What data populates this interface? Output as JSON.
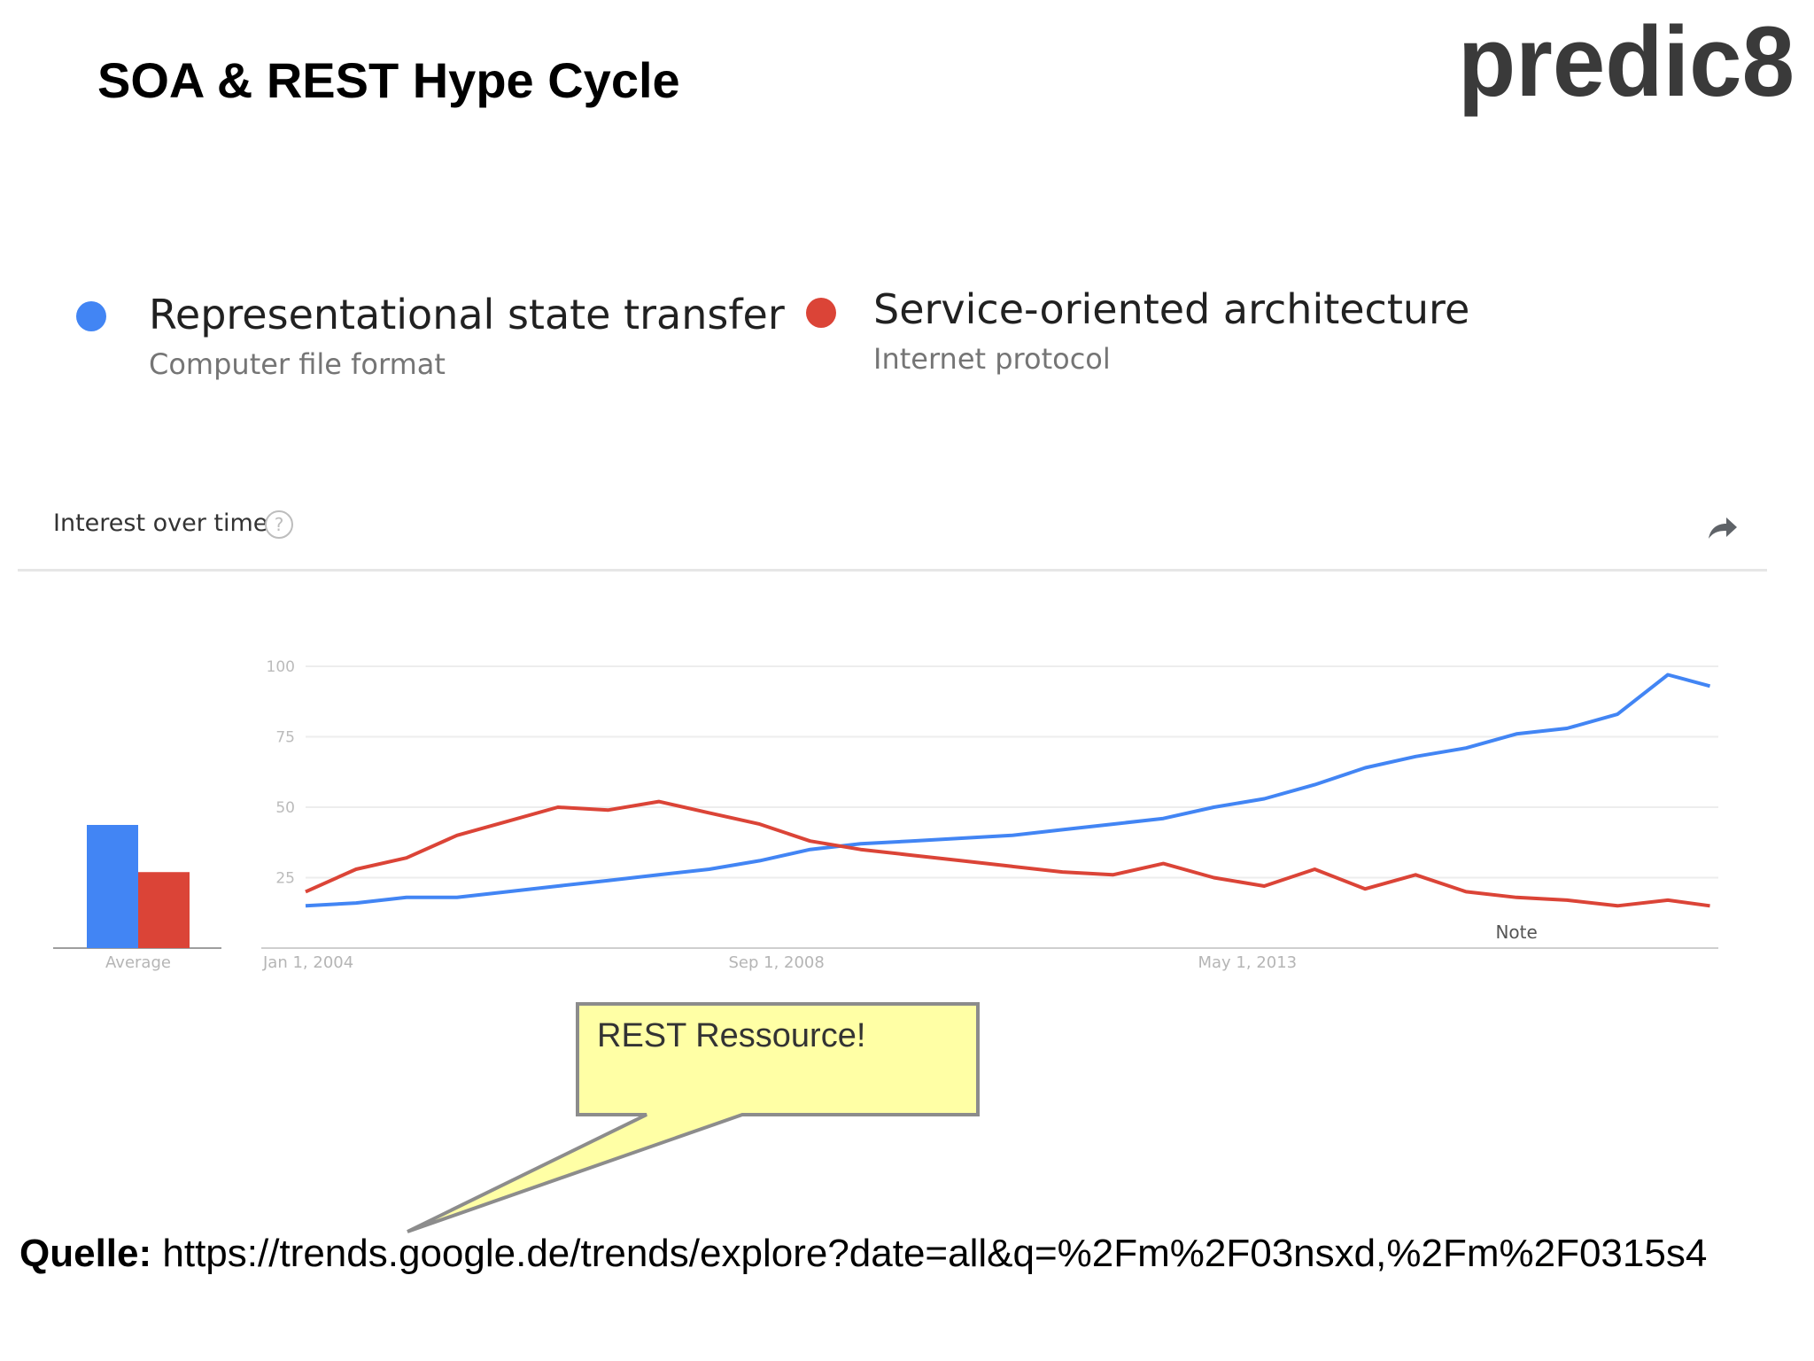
{
  "slide": {
    "title": "SOA & REST Hype Cycle",
    "logo_text": "predic8",
    "source_label": "Quelle:",
    "source_url": "https://trends.google.de/trends/explore?date=all&q=%2Fm%2F03nsxd,%2Fm%2F0315s4"
  },
  "legend": [
    {
      "name": "Representational state transfer",
      "subtitle": "Computer file format",
      "color": "#4285f4"
    },
    {
      "name": "Service-oriented architecture",
      "subtitle": "Internet protocol",
      "color": "#db4437"
    }
  ],
  "panel": {
    "title": "Interest over time",
    "help_icon": "help-circle-icon",
    "share_icon": "share-arrow-icon"
  },
  "callout": {
    "text": "REST Ressource!",
    "fill": "#ffffa5",
    "border": "#8c8c8c"
  },
  "chart_data": {
    "type": "line",
    "x_tick_labels": [
      "Jan 1, 2004",
      "Sep 1, 2008",
      "May 1, 2013"
    ],
    "y_ticks": [
      25,
      50,
      75,
      100
    ],
    "ylim": [
      0,
      100
    ],
    "xlim": [
      "2004-01",
      "2018-01"
    ],
    "grid": true,
    "note_label": "Note",
    "average_label": "Average",
    "averages": [
      {
        "name": "Representational state transfer",
        "value": 47
      },
      {
        "name": "Service-oriented architecture",
        "value": 29
      }
    ],
    "series": [
      {
        "name": "Representational state transfer",
        "color": "#4285f4",
        "x": [
          "2004-01",
          "2004-07",
          "2005-01",
          "2005-07",
          "2006-01",
          "2006-07",
          "2007-01",
          "2007-07",
          "2008-01",
          "2008-07",
          "2009-01",
          "2009-07",
          "2010-01",
          "2010-07",
          "2011-01",
          "2011-07",
          "2012-01",
          "2012-07",
          "2013-01",
          "2013-07",
          "2014-01",
          "2014-07",
          "2015-01",
          "2015-07",
          "2016-01",
          "2016-07",
          "2017-01",
          "2017-07",
          "2017-12"
        ],
        "y": [
          15,
          16,
          18,
          18,
          20,
          22,
          24,
          26,
          28,
          31,
          35,
          37,
          38,
          39,
          40,
          42,
          44,
          46,
          50,
          53,
          58,
          64,
          68,
          71,
          76,
          78,
          83,
          97,
          93
        ]
      },
      {
        "name": "Service-oriented architecture",
        "color": "#db4437",
        "x": [
          "2004-01",
          "2004-07",
          "2005-01",
          "2005-07",
          "2006-01",
          "2006-07",
          "2007-01",
          "2007-07",
          "2008-01",
          "2008-07",
          "2009-01",
          "2009-07",
          "2010-01",
          "2010-07",
          "2011-01",
          "2011-07",
          "2012-01",
          "2012-07",
          "2013-01",
          "2013-07",
          "2014-01",
          "2014-07",
          "2015-01",
          "2015-07",
          "2016-01",
          "2016-07",
          "2017-01",
          "2017-07",
          "2017-12"
        ],
        "y": [
          20,
          28,
          32,
          40,
          45,
          50,
          49,
          52,
          48,
          44,
          38,
          35,
          33,
          31,
          29,
          27,
          26,
          30,
          25,
          22,
          28,
          21,
          26,
          20,
          18,
          17,
          15,
          17,
          15
        ]
      }
    ]
  }
}
